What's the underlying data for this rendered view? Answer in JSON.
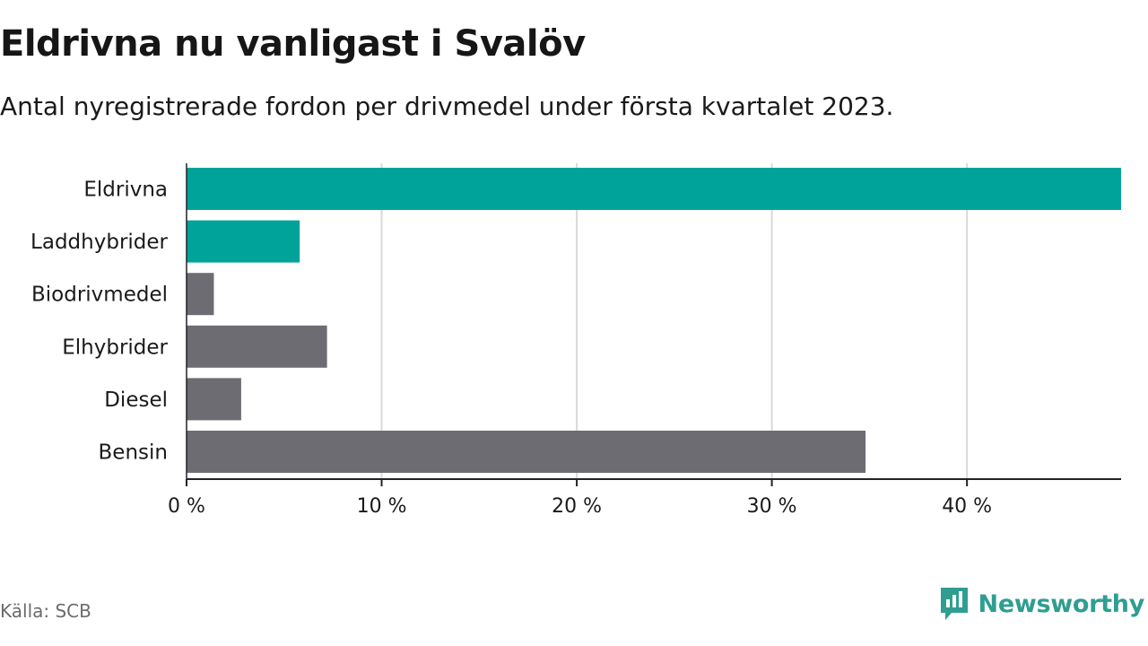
{
  "header": {
    "title": "Eldrivna nu vanligast i Svalöv",
    "subtitle": "Antal nyregistrerade fordon per drivmedel under första kvartalet 2023."
  },
  "footer": {
    "source": "Källa: SCB",
    "brand": "Newsworthy"
  },
  "colors": {
    "highlight": "#00a39a",
    "default": "#6d6c73",
    "grid": "#d9d9d9",
    "axis": "#222222",
    "brand": "#2f9e91"
  },
  "chart_data": {
    "type": "bar",
    "orientation": "horizontal",
    "categories": [
      "Eldrivna",
      "Laddhybrider",
      "Biodrivmedel",
      "Elhybrider",
      "Diesel",
      "Bensin"
    ],
    "values": [
      47.9,
      5.8,
      1.4,
      7.2,
      2.8,
      34.8
    ],
    "highlight": [
      true,
      true,
      false,
      false,
      false,
      false
    ],
    "xticks": [
      0,
      10,
      20,
      30,
      40
    ],
    "xtick_labels": [
      "0 %",
      "10 %",
      "20 %",
      "30 %",
      "40 %"
    ],
    "xlim": [
      0,
      47.9
    ],
    "grid": true,
    "title": "Eldrivna nu vanligast i Svalöv",
    "xlabel": "",
    "ylabel": ""
  }
}
